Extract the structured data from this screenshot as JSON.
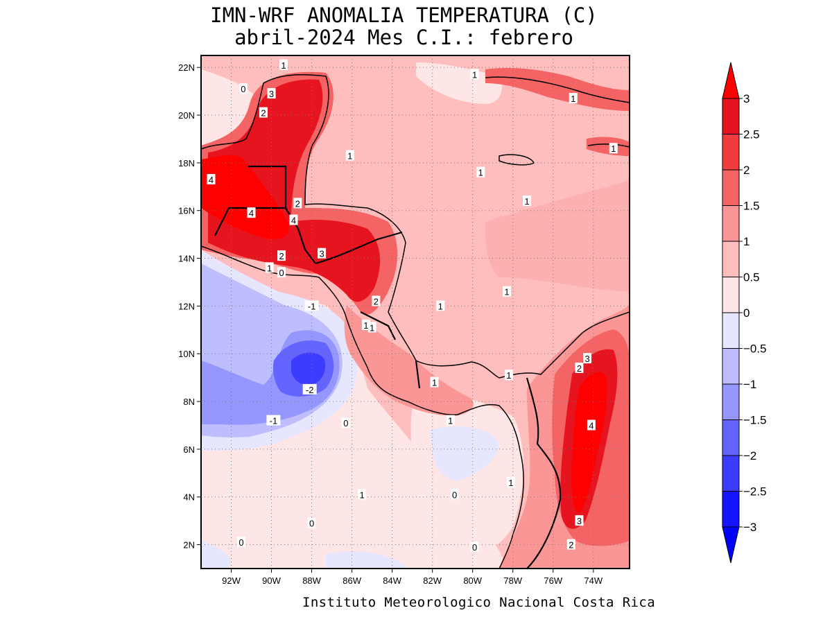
{
  "title": {
    "line1": "IMN-WRF  ANOMALIA TEMPERATURA (C)",
    "line2": "abril-2024 Mes C.I.: febrero"
  },
  "footer": "Instituto Meteorologico Nacional Costa Rica",
  "map": {
    "lon_range": [
      -93.5,
      -72.2
    ],
    "lat_range": [
      1.0,
      22.5
    ],
    "lon_ticks": [
      {
        "value": -92,
        "label": "92W"
      },
      {
        "value": -90,
        "label": "90W"
      },
      {
        "value": -88,
        "label": "88W"
      },
      {
        "value": -86,
        "label": "86W"
      },
      {
        "value": -84,
        "label": "84W"
      },
      {
        "value": -82,
        "label": "82W"
      },
      {
        "value": -80,
        "label": "80W"
      },
      {
        "value": -78,
        "label": "78W"
      },
      {
        "value": -76,
        "label": "76W"
      },
      {
        "value": -74,
        "label": "74W"
      }
    ],
    "lat_ticks": [
      {
        "value": 22,
        "label": "22N"
      },
      {
        "value": 20,
        "label": "20N"
      },
      {
        "value": 18,
        "label": "18N"
      },
      {
        "value": 16,
        "label": "16N"
      },
      {
        "value": 14,
        "label": "14N"
      },
      {
        "value": 12,
        "label": "12N"
      },
      {
        "value": 10,
        "label": "10N"
      },
      {
        "value": 8,
        "label": "8N"
      },
      {
        "value": 6,
        "label": "6N"
      },
      {
        "value": 4,
        "label": "4N"
      },
      {
        "value": 2,
        "label": "2N"
      }
    ],
    "contour_labels": [
      {
        "lon": -89.4,
        "lat": 22.1,
        "text": "1"
      },
      {
        "lon": -91.4,
        "lat": 21.1,
        "text": "0"
      },
      {
        "lon": -90.0,
        "lat": 20.9,
        "text": "3"
      },
      {
        "lon": -90.4,
        "lat": 20.1,
        "text": "2"
      },
      {
        "lon": -79.9,
        "lat": 21.7,
        "text": "1"
      },
      {
        "lon": -75.0,
        "lat": 20.7,
        "text": "1"
      },
      {
        "lon": -73.0,
        "lat": 18.6,
        "text": "1"
      },
      {
        "lon": -86.1,
        "lat": 18.3,
        "text": "1"
      },
      {
        "lon": -79.6,
        "lat": 17.6,
        "text": "1"
      },
      {
        "lon": -93.0,
        "lat": 17.3,
        "text": "4"
      },
      {
        "lon": -77.3,
        "lat": 16.4,
        "text": "1"
      },
      {
        "lon": -88.7,
        "lat": 16.3,
        "text": "2"
      },
      {
        "lon": -91.0,
        "lat": 15.9,
        "text": "4"
      },
      {
        "lon": -88.9,
        "lat": 15.6,
        "text": "4"
      },
      {
        "lon": -89.5,
        "lat": 14.1,
        "text": "2"
      },
      {
        "lon": -87.5,
        "lat": 14.2,
        "text": "3"
      },
      {
        "lon": -90.1,
        "lat": 13.6,
        "text": "1"
      },
      {
        "lon": -89.5,
        "lat": 13.4,
        "text": "0"
      },
      {
        "lon": -78.3,
        "lat": 12.6,
        "text": "1"
      },
      {
        "lon": -84.8,
        "lat": 12.2,
        "text": "2"
      },
      {
        "lon": -88.0,
        "lat": 12.0,
        "text": "-1"
      },
      {
        "lon": -81.6,
        "lat": 12.0,
        "text": "1"
      },
      {
        "lon": -85.3,
        "lat": 11.2,
        "text": "1"
      },
      {
        "lon": -85.0,
        "lat": 11.1,
        "text": "1"
      },
      {
        "lon": -74.3,
        "lat": 9.8,
        "text": "3"
      },
      {
        "lon": -74.7,
        "lat": 9.4,
        "text": "2"
      },
      {
        "lon": -78.2,
        "lat": 9.1,
        "text": "1"
      },
      {
        "lon": -81.9,
        "lat": 8.8,
        "text": "1"
      },
      {
        "lon": -88.1,
        "lat": 8.5,
        "text": "-2"
      },
      {
        "lon": -81.1,
        "lat": 7.2,
        "text": "1"
      },
      {
        "lon": -89.9,
        "lat": 7.2,
        "text": "-1"
      },
      {
        "lon": -86.3,
        "lat": 7.1,
        "text": "0"
      },
      {
        "lon": -74.1,
        "lat": 7.0,
        "text": "4"
      },
      {
        "lon": -78.1,
        "lat": 4.6,
        "text": "1"
      },
      {
        "lon": -80.9,
        "lat": 4.1,
        "text": "0"
      },
      {
        "lon": -85.5,
        "lat": 4.1,
        "text": "1"
      },
      {
        "lon": -74.7,
        "lat": 3.0,
        "text": "3"
      },
      {
        "lon": -88.0,
        "lat": 2.9,
        "text": "0"
      },
      {
        "lon": -79.9,
        "lat": 1.9,
        "text": "0"
      },
      {
        "lon": -91.5,
        "lat": 2.1,
        "text": "0"
      },
      {
        "lon": -75.1,
        "lat": 2.0,
        "text": "2"
      }
    ]
  },
  "colorbar": {
    "labels": [
      "3",
      "2.5",
      "2",
      "1.5",
      "1",
      "0.5",
      "0",
      "−0.5",
      "−1",
      "−1.5",
      "−2",
      "−2.5",
      "−3"
    ],
    "colors_top_to_bottom": [
      "#e6141e",
      "#f03c3c",
      "#f56464",
      "#fa9696",
      "#ffbebe",
      "#ffe6e6",
      "#e6e6ff",
      "#bebeff",
      "#9696ff",
      "#6464ff",
      "#3c3cff",
      "#1414ff"
    ],
    "over_color": "#ff0000",
    "under_color": "#0000ff"
  }
}
